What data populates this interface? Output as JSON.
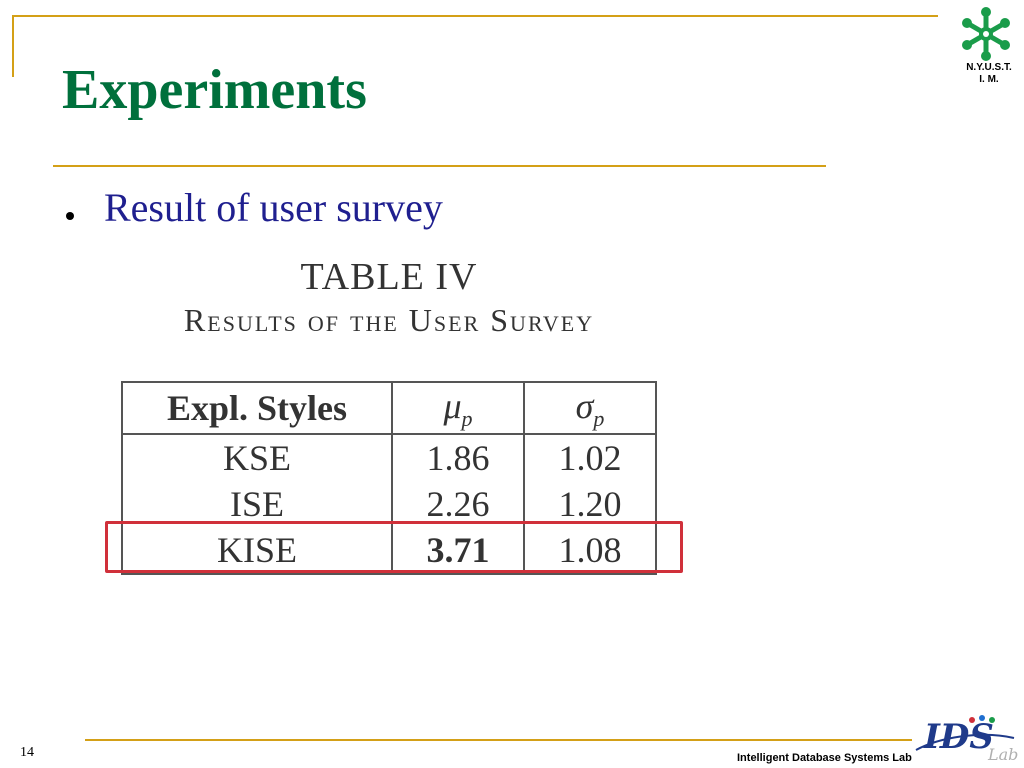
{
  "slide": {
    "title": "Experiments",
    "bullet": "Result of user survey",
    "page_number": "14",
    "footer": "Intelligent Database Systems Lab"
  },
  "logo": {
    "line1": "N.Y.U.S.T.",
    "line2": "I. M.",
    "icon": "snowflake-emblem-icon",
    "color": "#1a9c4a"
  },
  "footer_logo": {
    "text": "IDS",
    "sub_text": "Lab",
    "icon": "ids-lab-logo-icon"
  },
  "table": {
    "title": "TABLE IV",
    "caption": "Results of the User Survey",
    "columns": [
      {
        "main": "Expl. Styles",
        "sub": ""
      },
      {
        "main": "μ",
        "sub": "p"
      },
      {
        "main": "σ",
        "sub": "p"
      }
    ],
    "rows": [
      {
        "style": "KSE",
        "mu": "1.86",
        "sigma": "1.02"
      },
      {
        "style": "ISE",
        "mu": "2.26",
        "sigma": "1.20"
      },
      {
        "style": "KISE",
        "mu": "3.71",
        "sigma": "1.08"
      }
    ],
    "highlighted_row": "KISE"
  },
  "colors": {
    "title": "#00703c",
    "bullet_text": "#1f1f8f",
    "rules": "#d4a017",
    "highlight": "#d0303a"
  }
}
